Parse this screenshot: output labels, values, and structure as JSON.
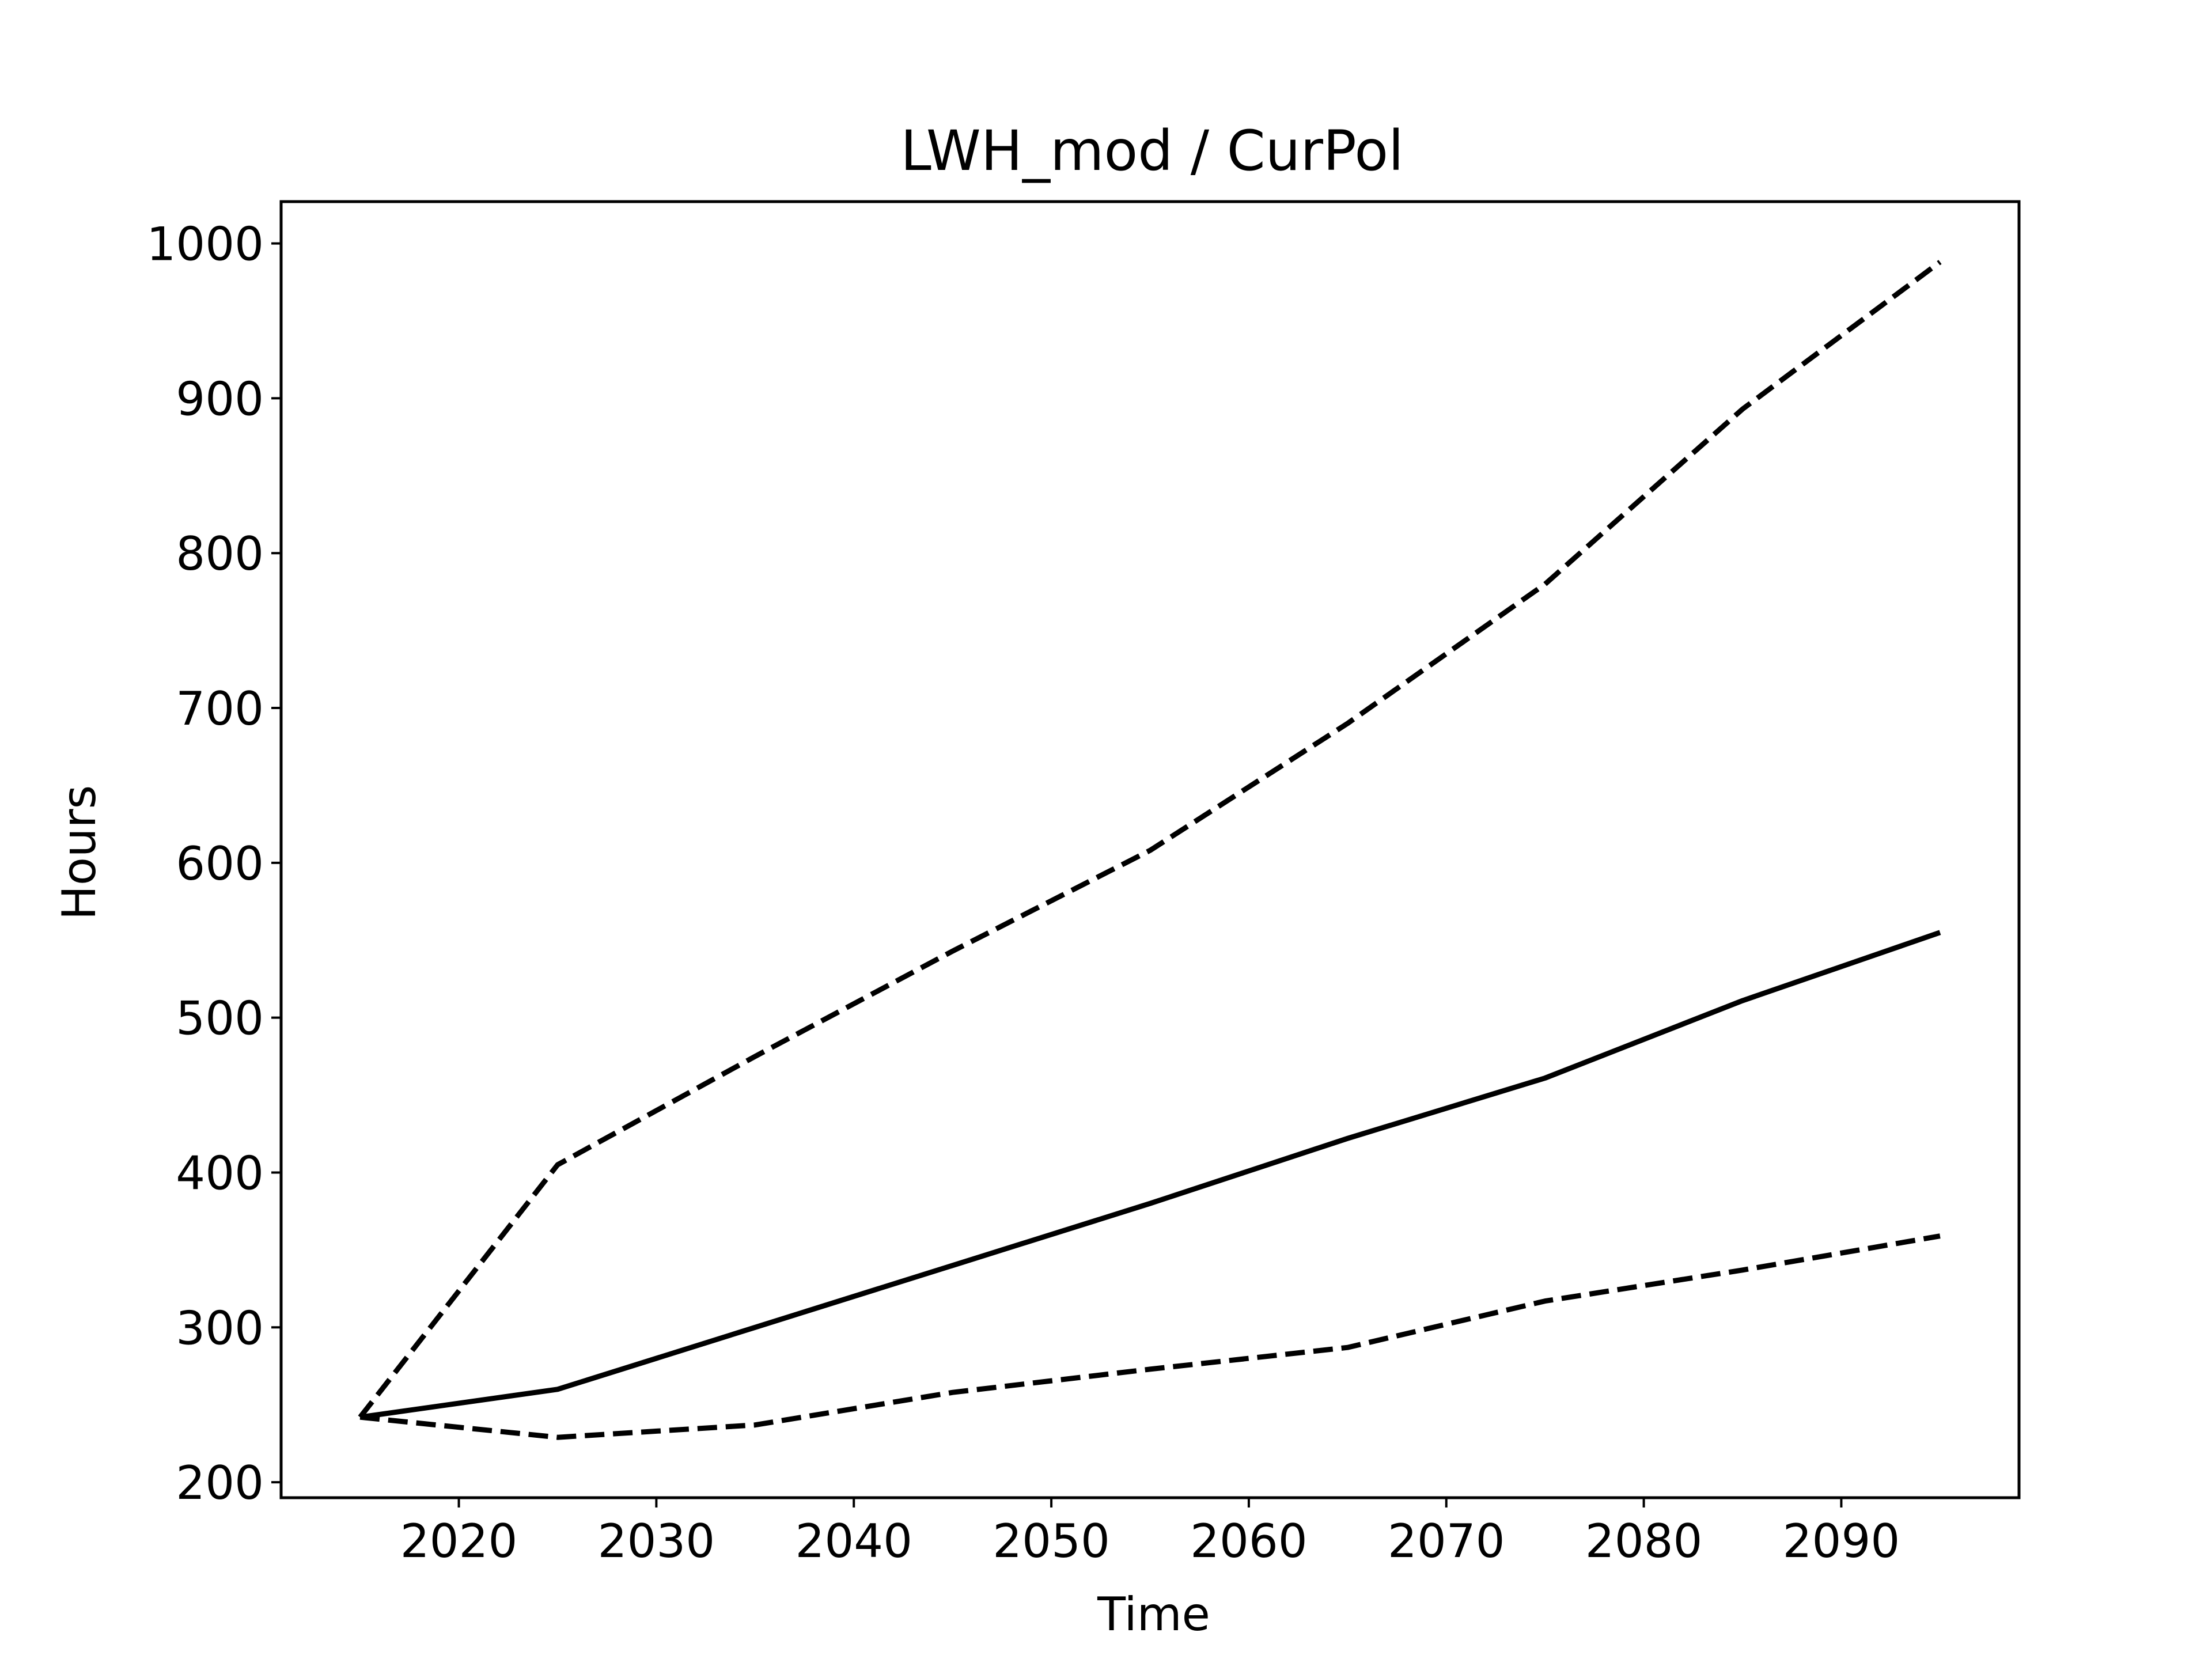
{
  "chart_data": {
    "type": "line",
    "title": "LWH_mod / CurPol",
    "xlabel": "Time",
    "ylabel": "Hours",
    "xlim": [
      2011,
      2099
    ],
    "ylim": [
      190,
      1027
    ],
    "x_ticks": [
      2020,
      2030,
      2040,
      2050,
      2060,
      2070,
      2080,
      2090
    ],
    "y_ticks": [
      200,
      300,
      400,
      500,
      600,
      700,
      800,
      900,
      1000
    ],
    "x": [
      2015,
      2025,
      2035,
      2045,
      2055,
      2065,
      2075,
      2085,
      2095
    ],
    "grid": false,
    "legend": "none",
    "line_color": "#000000",
    "series": [
      {
        "line_style": "dashed",
        "values": [
          242,
          405,
          475,
          543,
          608,
          690,
          780,
          893,
          988
        ]
      },
      {
        "line_style": "solid",
        "values": [
          242,
          260,
          300,
          340,
          380,
          422,
          461,
          511,
          555
        ]
      },
      {
        "line_style": "dashed",
        "values": [
          242,
          229,
          237,
          258,
          273,
          287,
          317,
          337,
          359
        ]
      }
    ]
  }
}
